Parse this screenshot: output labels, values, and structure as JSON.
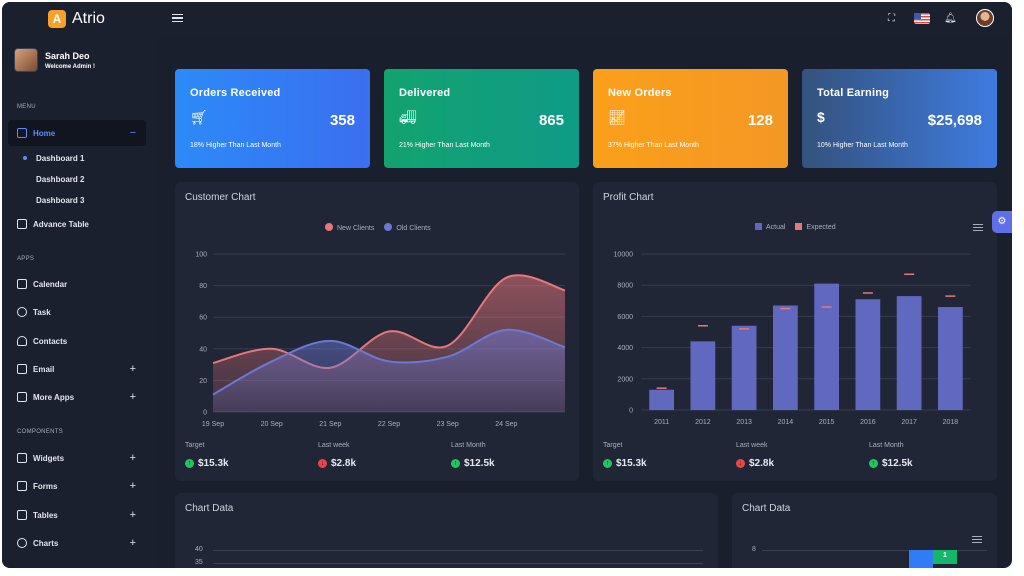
{
  "brand": {
    "logo_letter": "A",
    "name": "Atrio"
  },
  "user": {
    "name": "Sarah Deo",
    "subtitle": "Welcome Admin !"
  },
  "sidebar": {
    "menu_title": "MENU",
    "home_label": "Home",
    "home_toggle": "−",
    "dashboards": [
      "Dashboard 1",
      "Dashboard 2",
      "Dashboard 3"
    ],
    "advance_table": "Advance Table",
    "apps_title": "APPS",
    "calendar": "Calendar",
    "task": "Task",
    "contacts": "Contacts",
    "email": "Email",
    "more_apps": "More Apps",
    "components_title": "COMPONENTS",
    "widgets": "Widgets",
    "forms": "Forms",
    "tables": "Tables",
    "charts": "Charts",
    "plus": "+"
  },
  "cards": [
    {
      "title": "Orders Received",
      "value": "358",
      "foot": "18% Higher Than Last Month",
      "icon": "cart-icon",
      "color": "#2f7cf6"
    },
    {
      "title": "Delivered",
      "value": "865",
      "foot": "21% Higher Than Last Month",
      "icon": "truck-icon",
      "color": "#14a37a"
    },
    {
      "title": "New Orders",
      "value": "128",
      "foot": "37% Higher Than Last Month",
      "icon": "trend-icon",
      "color": "#f79a1c"
    },
    {
      "title": "Total Earning",
      "value": "$25,698",
      "foot": "10% Higher Than Last Month",
      "icon": "dollar-icon",
      "color": "#3b6fcf"
    }
  ],
  "customer_panel": {
    "title": "Customer Chart",
    "stats": [
      {
        "label": "Target",
        "value": "$15.3k",
        "trend": "up"
      },
      {
        "label": "Last week",
        "value": "$2.8k",
        "trend": "down"
      },
      {
        "label": "Last Month",
        "value": "$12.5k",
        "trend": "up"
      }
    ]
  },
  "profit_panel": {
    "title": "Profit Chart",
    "stats": [
      {
        "label": "Target",
        "value": "$15.3k",
        "trend": "up"
      },
      {
        "label": "Last week",
        "value": "$2.8k",
        "trend": "down"
      },
      {
        "label": "Last Month",
        "value": "$12.5k",
        "trend": "up"
      }
    ]
  },
  "bottom_left": {
    "title": "Chart Data",
    "y_ticks": [
      "40",
      "35"
    ]
  },
  "bottom_right": {
    "title": "Chart Data",
    "y_tick": "8",
    "bar_label": "1"
  },
  "chart_data": [
    {
      "type": "area",
      "series": [
        {
          "name": "New Clients",
          "color": "#e8767a",
          "values": [
            31,
            40,
            28,
            51,
            42,
            85,
            77
          ]
        },
        {
          "name": "Old Clients",
          "color": "#6d78d4",
          "values": [
            11,
            32,
            45,
            32,
            35,
            52,
            41
          ]
        }
      ],
      "x": [
        "19 Sep",
        "20 Sep",
        "21 Sep",
        "22 Sep",
        "23 Sep",
        "24 Sep",
        ""
      ],
      "x_ticks": [
        "19 Sep",
        "20 Sep",
        "21 Sep",
        "22 Sep",
        "23 Sep",
        "24 Sep"
      ],
      "y_ticks": [
        0,
        20,
        40,
        60,
        80,
        100
      ],
      "ylim": [
        0,
        100
      ],
      "legend": "top-center",
      "grid": true
    },
    {
      "type": "bar",
      "categories": [
        "2011",
        "2012",
        "2013",
        "2014",
        "2015",
        "2016",
        "2017",
        "2018"
      ],
      "series": [
        {
          "name": "Actual",
          "color": "#6068c0",
          "values": [
            1300,
            4400,
            5400,
            6700,
            8100,
            7100,
            7300,
            6600
          ]
        },
        {
          "name": "Expected",
          "color": "#e8767a",
          "values": [
            1400,
            5400,
            5200,
            6500,
            6600,
            7500,
            8700,
            7300
          ]
        }
      ],
      "y_ticks": [
        0,
        2000,
        4000,
        6000,
        8000,
        10000
      ],
      "ylim": [
        0,
        10000
      ],
      "legend": "top-center",
      "grid": true
    }
  ]
}
